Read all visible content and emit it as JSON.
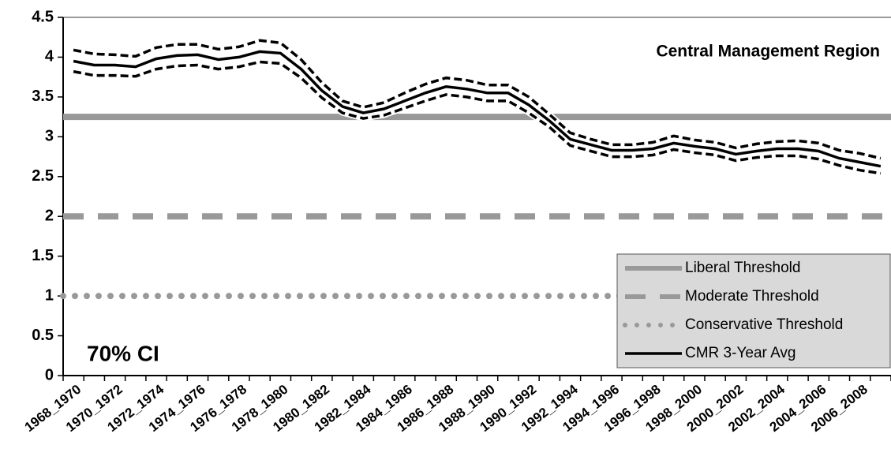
{
  "chart_data": {
    "type": "line",
    "title": "Central Management Region",
    "annotation": "70% CI",
    "categories": [
      "1968_1970",
      null,
      "1970_1972",
      null,
      "1972_1974",
      null,
      "1974_1976",
      null,
      "1976_1978",
      null,
      "1978_1980",
      null,
      "1980_1982",
      null,
      "1982_1984",
      null,
      "1984_1986",
      null,
      "1986_1988",
      null,
      "1988_1990",
      null,
      "1990_1992",
      null,
      "1992_1994",
      null,
      "1994_1996",
      null,
      "1996_1998",
      null,
      "1998_2000",
      null,
      "2000_2002",
      null,
      "2002_2004",
      null,
      "2004_2006",
      null,
      "2006_2008",
      null
    ],
    "series": [
      {
        "name": "CMR 3-Year Avg",
        "color": "#000000",
        "dash": "solid",
        "values": [
          3.95,
          3.9,
          3.9,
          3.88,
          3.98,
          4.02,
          4.03,
          3.97,
          4.0,
          4.07,
          4.05,
          3.85,
          3.58,
          3.38,
          3.3,
          3.35,
          3.45,
          3.55,
          3.63,
          3.6,
          3.55,
          3.55,
          3.4,
          3.2,
          2.97,
          2.9,
          2.83,
          2.83,
          2.85,
          2.92,
          2.88,
          2.85,
          2.78,
          2.82,
          2.85,
          2.85,
          2.82,
          2.73,
          2.68,
          2.63
        ]
      },
      {
        "color": "#000000",
        "dash": "dashed",
        "values": [
          4.09,
          4.04,
          4.03,
          4.01,
          4.12,
          4.16,
          4.16,
          4.1,
          4.13,
          4.21,
          4.18,
          3.97,
          3.68,
          3.45,
          3.37,
          3.43,
          3.55,
          3.66,
          3.74,
          3.71,
          3.65,
          3.65,
          3.5,
          3.28,
          3.05,
          2.97,
          2.9,
          2.9,
          2.93,
          3.01,
          2.96,
          2.93,
          2.86,
          2.91,
          2.94,
          2.95,
          2.92,
          2.83,
          2.79,
          2.73
        ]
      },
      {
        "color": "#000000",
        "dash": "dashed",
        "values": [
          3.82,
          3.77,
          3.77,
          3.76,
          3.85,
          3.89,
          3.9,
          3.85,
          3.88,
          3.94,
          3.92,
          3.74,
          3.49,
          3.3,
          3.23,
          3.27,
          3.36,
          3.45,
          3.53,
          3.5,
          3.45,
          3.45,
          3.3,
          3.12,
          2.89,
          2.82,
          2.75,
          2.75,
          2.77,
          2.84,
          2.8,
          2.77,
          2.7,
          2.74,
          2.76,
          2.76,
          2.72,
          2.64,
          2.58,
          2.54
        ]
      }
    ],
    "thresholds": [
      {
        "name": "Liberal Threshold",
        "value": 3.25,
        "color": "#999999",
        "dash": "solid"
      },
      {
        "name": "Moderate Threshold",
        "value": 2,
        "color": "#999999",
        "dash": "dashed"
      },
      {
        "name": "Conservative Threshold",
        "value": 1,
        "color": "#999999",
        "dash": "dotted"
      }
    ],
    "legend_order": [
      "thresholds.0",
      "thresholds.1",
      "thresholds.2",
      "series.0"
    ],
    "ylim": [
      0,
      4.5
    ],
    "yticks": [
      0,
      0.5,
      1,
      1.5,
      2,
      2.5,
      3,
      3.5,
      4,
      4.5
    ]
  }
}
